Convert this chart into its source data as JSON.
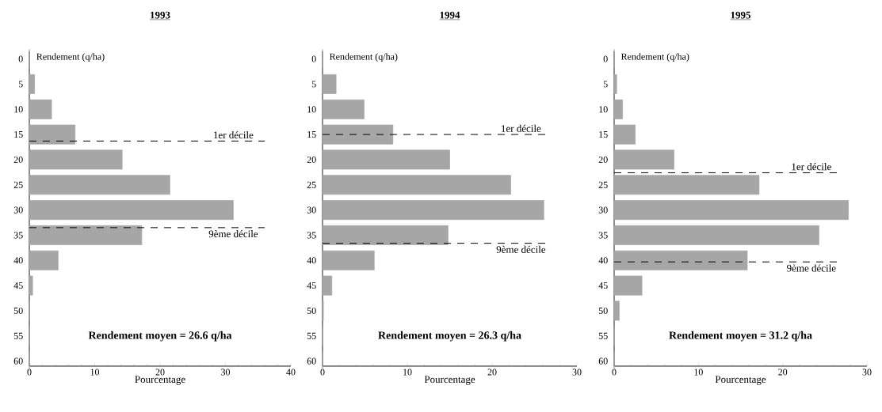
{
  "chart_data": [
    {
      "type": "bar",
      "orientation": "horizontal",
      "title": "1993",
      "xlabel": "Pourcentage",
      "ylabel": "Rendement (q/ha)",
      "color": "#a6a6a6",
      "x": [
        0,
        5,
        10,
        15,
        20,
        25,
        30,
        35,
        40,
        45,
        50,
        55,
        60
      ],
      "values": [
        0,
        0.8,
        3.4,
        7.0,
        14.2,
        21.5,
        31.2,
        17.2,
        4.4,
        0.5,
        0,
        0,
        0
      ],
      "xlim": [
        0,
        40
      ],
      "xticks": [
        0,
        10,
        20,
        30,
        40
      ],
      "ylim": [
        61,
        -1.5
      ],
      "yticks": [
        0,
        5,
        10,
        15,
        20,
        25,
        30,
        35,
        40,
        45,
        50,
        55,
        60
      ],
      "ref_lines": [
        {
          "axis": "y",
          "value": 16.3,
          "label": "1er décile",
          "line_style": "dashed"
        },
        {
          "axis": "y",
          "value": 33.5,
          "label": "9ème décile",
          "line_style": "dashed"
        }
      ],
      "annotations": [
        "Rendement moyen = 26.6 q/ha"
      ]
    },
    {
      "type": "bar",
      "orientation": "horizontal",
      "title": "1994",
      "xlabel": "Pourcentage",
      "ylabel": "Rendement (q/ha)",
      "color": "#a6a6a6",
      "x": [
        0,
        5,
        10,
        15,
        20,
        25,
        30,
        35,
        40,
        45,
        50,
        55,
        60
      ],
      "values": [
        0,
        1.6,
        4.9,
        8.3,
        15.0,
        22.2,
        26.1,
        14.8,
        6.1,
        1.1,
        0.1,
        0,
        0
      ],
      "xlim": [
        0,
        30
      ],
      "xticks": [
        0,
        10,
        20,
        30
      ],
      "ylim": [
        61,
        -1.5
      ],
      "yticks": [
        0,
        5,
        10,
        15,
        20,
        25,
        30,
        35,
        40,
        45,
        50,
        55,
        60
      ],
      "ref_lines": [
        {
          "axis": "y",
          "value": 15.0,
          "label": "1er décile",
          "line_style": "dashed"
        },
        {
          "axis": "y",
          "value": 36.6,
          "label": "9ème décile",
          "line_style": "dashed"
        }
      ],
      "annotations": [
        "Rendement moyen = 26.3 q/ha"
      ]
    },
    {
      "type": "bar",
      "orientation": "horizontal",
      "title": "1995",
      "xlabel": "Pourcentage",
      "ylabel": "Rendement (q/ha)",
      "color": "#a6a6a6",
      "x": [
        0,
        5,
        10,
        15,
        20,
        25,
        30,
        35,
        40,
        45,
        50,
        55,
        60
      ],
      "values": [
        0,
        0.3,
        1.0,
        2.5,
        7.1,
        17.2,
        27.8,
        24.3,
        15.8,
        3.3,
        0.6,
        0,
        0
      ],
      "xlim": [
        0,
        30
      ],
      "xticks": [
        0,
        10,
        20,
        30
      ],
      "ylim": [
        61,
        -1.5
      ],
      "yticks": [
        0,
        5,
        10,
        15,
        20,
        25,
        30,
        35,
        40,
        45,
        50,
        55,
        60
      ],
      "ref_lines": [
        {
          "axis": "y",
          "value": 22.6,
          "label": "1er décile",
          "line_style": "dashed"
        },
        {
          "axis": "y",
          "value": 40.3,
          "label": "9ème décile",
          "line_style": "dashed"
        }
      ],
      "annotations": [
        "Rendement moyen = 31.2 q/ha"
      ]
    }
  ]
}
